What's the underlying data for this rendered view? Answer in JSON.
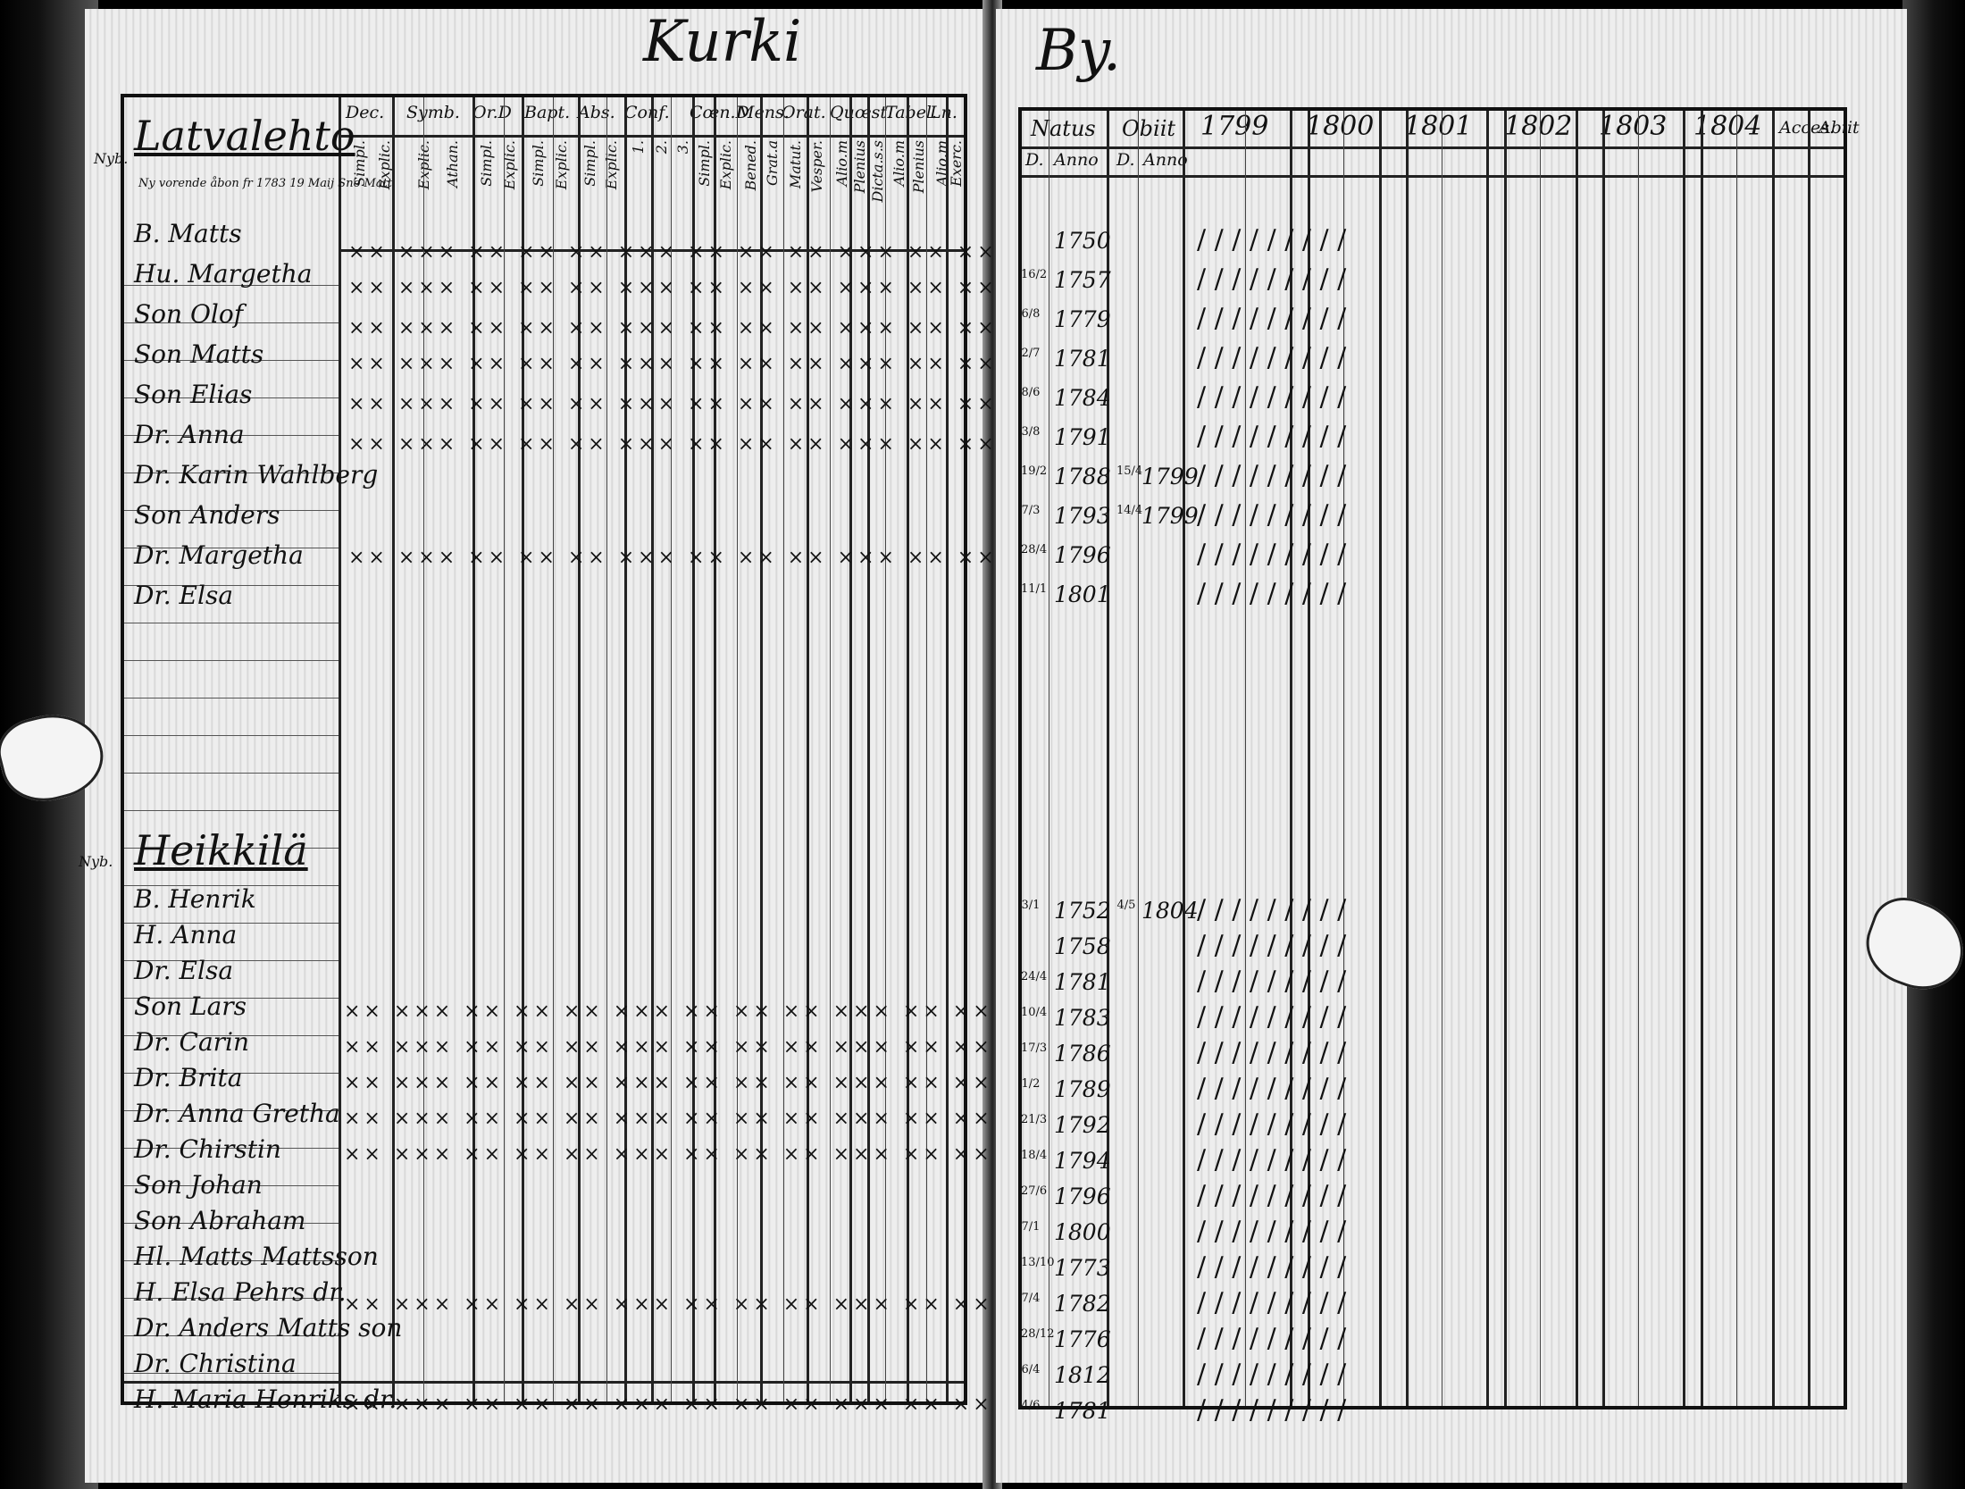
{
  "left_page": {
    "title": "Kurki",
    "column_groups": [
      {
        "label": "Dec.",
        "subs": [
          "Simpl.",
          "Explic."
        ]
      },
      {
        "label": "Symb.",
        "subs": [
          "Explic.",
          "Athan."
        ]
      },
      {
        "label": "Or.D",
        "subs": [
          "Simpl.",
          "Explic."
        ]
      },
      {
        "label": "Bapt.",
        "subs": [
          "Simpl.",
          "Explic."
        ]
      },
      {
        "label": "Abs.",
        "subs": [
          "Simpl.",
          "Explic."
        ]
      },
      {
        "label": "Conf.",
        "subs": [
          "1.",
          "2.",
          "3."
        ]
      },
      {
        "label": "Cœn.D",
        "subs": [
          "Simpl.",
          "Explic."
        ]
      },
      {
        "label": "Mens.",
        "subs": [
          "Bened.",
          "Grat.a"
        ]
      },
      {
        "label": "Orat.",
        "subs": [
          "Matut.",
          "Vesper."
        ]
      },
      {
        "label": "Quœst.",
        "subs": [
          "Alio.m",
          "Plenius",
          "Dicta.s.s"
        ]
      },
      {
        "label": "Tabel.",
        "subs": [
          "Alio.m",
          "Plenius"
        ]
      },
      {
        "label": "Ln.",
        "subs": [
          "Alio.m",
          "Exerc."
        ]
      }
    ],
    "households": [
      {
        "farm": "Latvalehto",
        "note": "Ny vorende åbon fr 1783 19 Maij Sno Matt",
        "side_mark": "Nyb.",
        "members": [
          {
            "label": "B. Matts"
          },
          {
            "label": "Hu. Margetha"
          },
          {
            "label": "Son Olof"
          },
          {
            "label": "Son Matts"
          },
          {
            "label": "Son Elias"
          },
          {
            "label": "Dr. Anna"
          },
          {
            "label": "Dr. Karin Wahlberg"
          },
          {
            "label": "Son Anders"
          },
          {
            "label": "Dr. Margetha"
          },
          {
            "label": "Dr. Elsa"
          }
        ]
      },
      {
        "farm": "Heikkilä",
        "side_mark": "Nyb.",
        "members": [
          {
            "label": "B. Henrik"
          },
          {
            "label": "H. Anna"
          },
          {
            "label": "Dr. Elsa"
          },
          {
            "label": "Son Lars"
          },
          {
            "label": "Dr. Carin"
          },
          {
            "label": "Dr. Brita"
          },
          {
            "label": "Dr. Anna Gretha"
          },
          {
            "label": "Dr. Chirstin"
          },
          {
            "label": "Son Johan"
          },
          {
            "label": "Son Abraham"
          },
          {
            "label": "Hl. Matts Mattsson"
          },
          {
            "label": "H. Elsa Pehrs dr."
          },
          {
            "label": "Dr. Anders Matts son"
          },
          {
            "label": "Dr. Christina"
          },
          {
            "label": "H. Maria Henriks dr."
          }
        ]
      }
    ]
  },
  "right_page": {
    "title": "By.",
    "headers": {
      "natus": "Natus",
      "obiit": "Obiit",
      "d": "D.",
      "anno": "Anno",
      "years": [
        "1799",
        "1800",
        "1801",
        "1802",
        "1803",
        "1804"
      ],
      "accessit": "Acces.",
      "abiit": "Abiit"
    },
    "births_top": [
      {
        "day": "",
        "year": "1750"
      },
      {
        "day": "16/2",
        "year": "1757"
      },
      {
        "day": "6/8",
        "year": "1779"
      },
      {
        "day": "2/7",
        "year": "1781"
      },
      {
        "day": "8/6",
        "year": "1784"
      },
      {
        "day": "3/8",
        "year": "1791"
      },
      {
        "day": "19/2",
        "year": "1788",
        "obit_day": "15/4",
        "obit_year": "1799"
      },
      {
        "day": "7/3",
        "year": "1793",
        "obit_day": "14/4",
        "obit_year": "1799"
      },
      {
        "day": "28/4",
        "year": "1796"
      },
      {
        "day": "11/1",
        "year": "1801"
      }
    ],
    "births_bottom": [
      {
        "day": "3/1",
        "year": "1752",
        "obit_day": "4/5",
        "obit_year": "1804"
      },
      {
        "day": "",
        "year": "1758"
      },
      {
        "day": "24/4",
        "year": "1781"
      },
      {
        "day": "10/4",
        "year": "1783"
      },
      {
        "day": "17/3",
        "year": "1786"
      },
      {
        "day": "1/2",
        "year": "1789"
      },
      {
        "day": "21/3",
        "year": "1792"
      },
      {
        "day": "18/4",
        "year": "1794"
      },
      {
        "day": "27/6",
        "year": "1796"
      },
      {
        "day": "7/1",
        "year": "1800"
      },
      {
        "day": "13/10",
        "year": "1773"
      },
      {
        "day": "7/4",
        "year": "1782"
      },
      {
        "day": "28/12",
        "year": "1776"
      },
      {
        "day": "6/4",
        "year": "1812"
      },
      {
        "day": "4/6",
        "year": "1781"
      }
    ]
  }
}
